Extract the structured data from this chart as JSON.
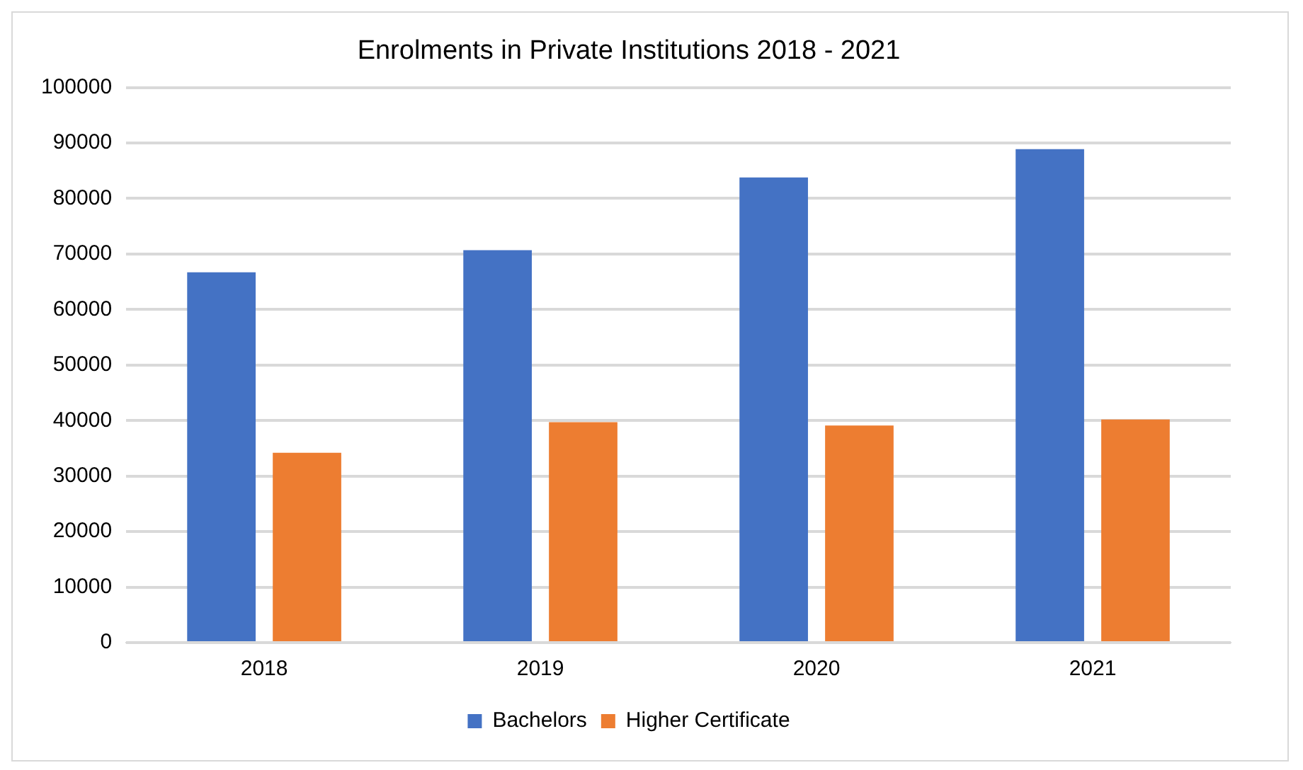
{
  "chart_data": {
    "type": "bar",
    "title": "Enrolments in Private Institutions 2018 - 2021",
    "categories": [
      "2018",
      "2019",
      "2020",
      "2021"
    ],
    "series": [
      {
        "name": "Bachelors",
        "color": "#4472c4",
        "values": [
          66700,
          70700,
          83800,
          88900
        ]
      },
      {
        "name": "Higher Certificate",
        "color": "#ed7d31",
        "values": [
          34200,
          39700,
          39100,
          40200
        ]
      }
    ],
    "ylim": [
      0,
      100000
    ],
    "yticks": [
      0,
      10000,
      20000,
      30000,
      40000,
      50000,
      60000,
      70000,
      80000,
      90000,
      100000
    ],
    "grid": "y",
    "legend": "bottom"
  }
}
